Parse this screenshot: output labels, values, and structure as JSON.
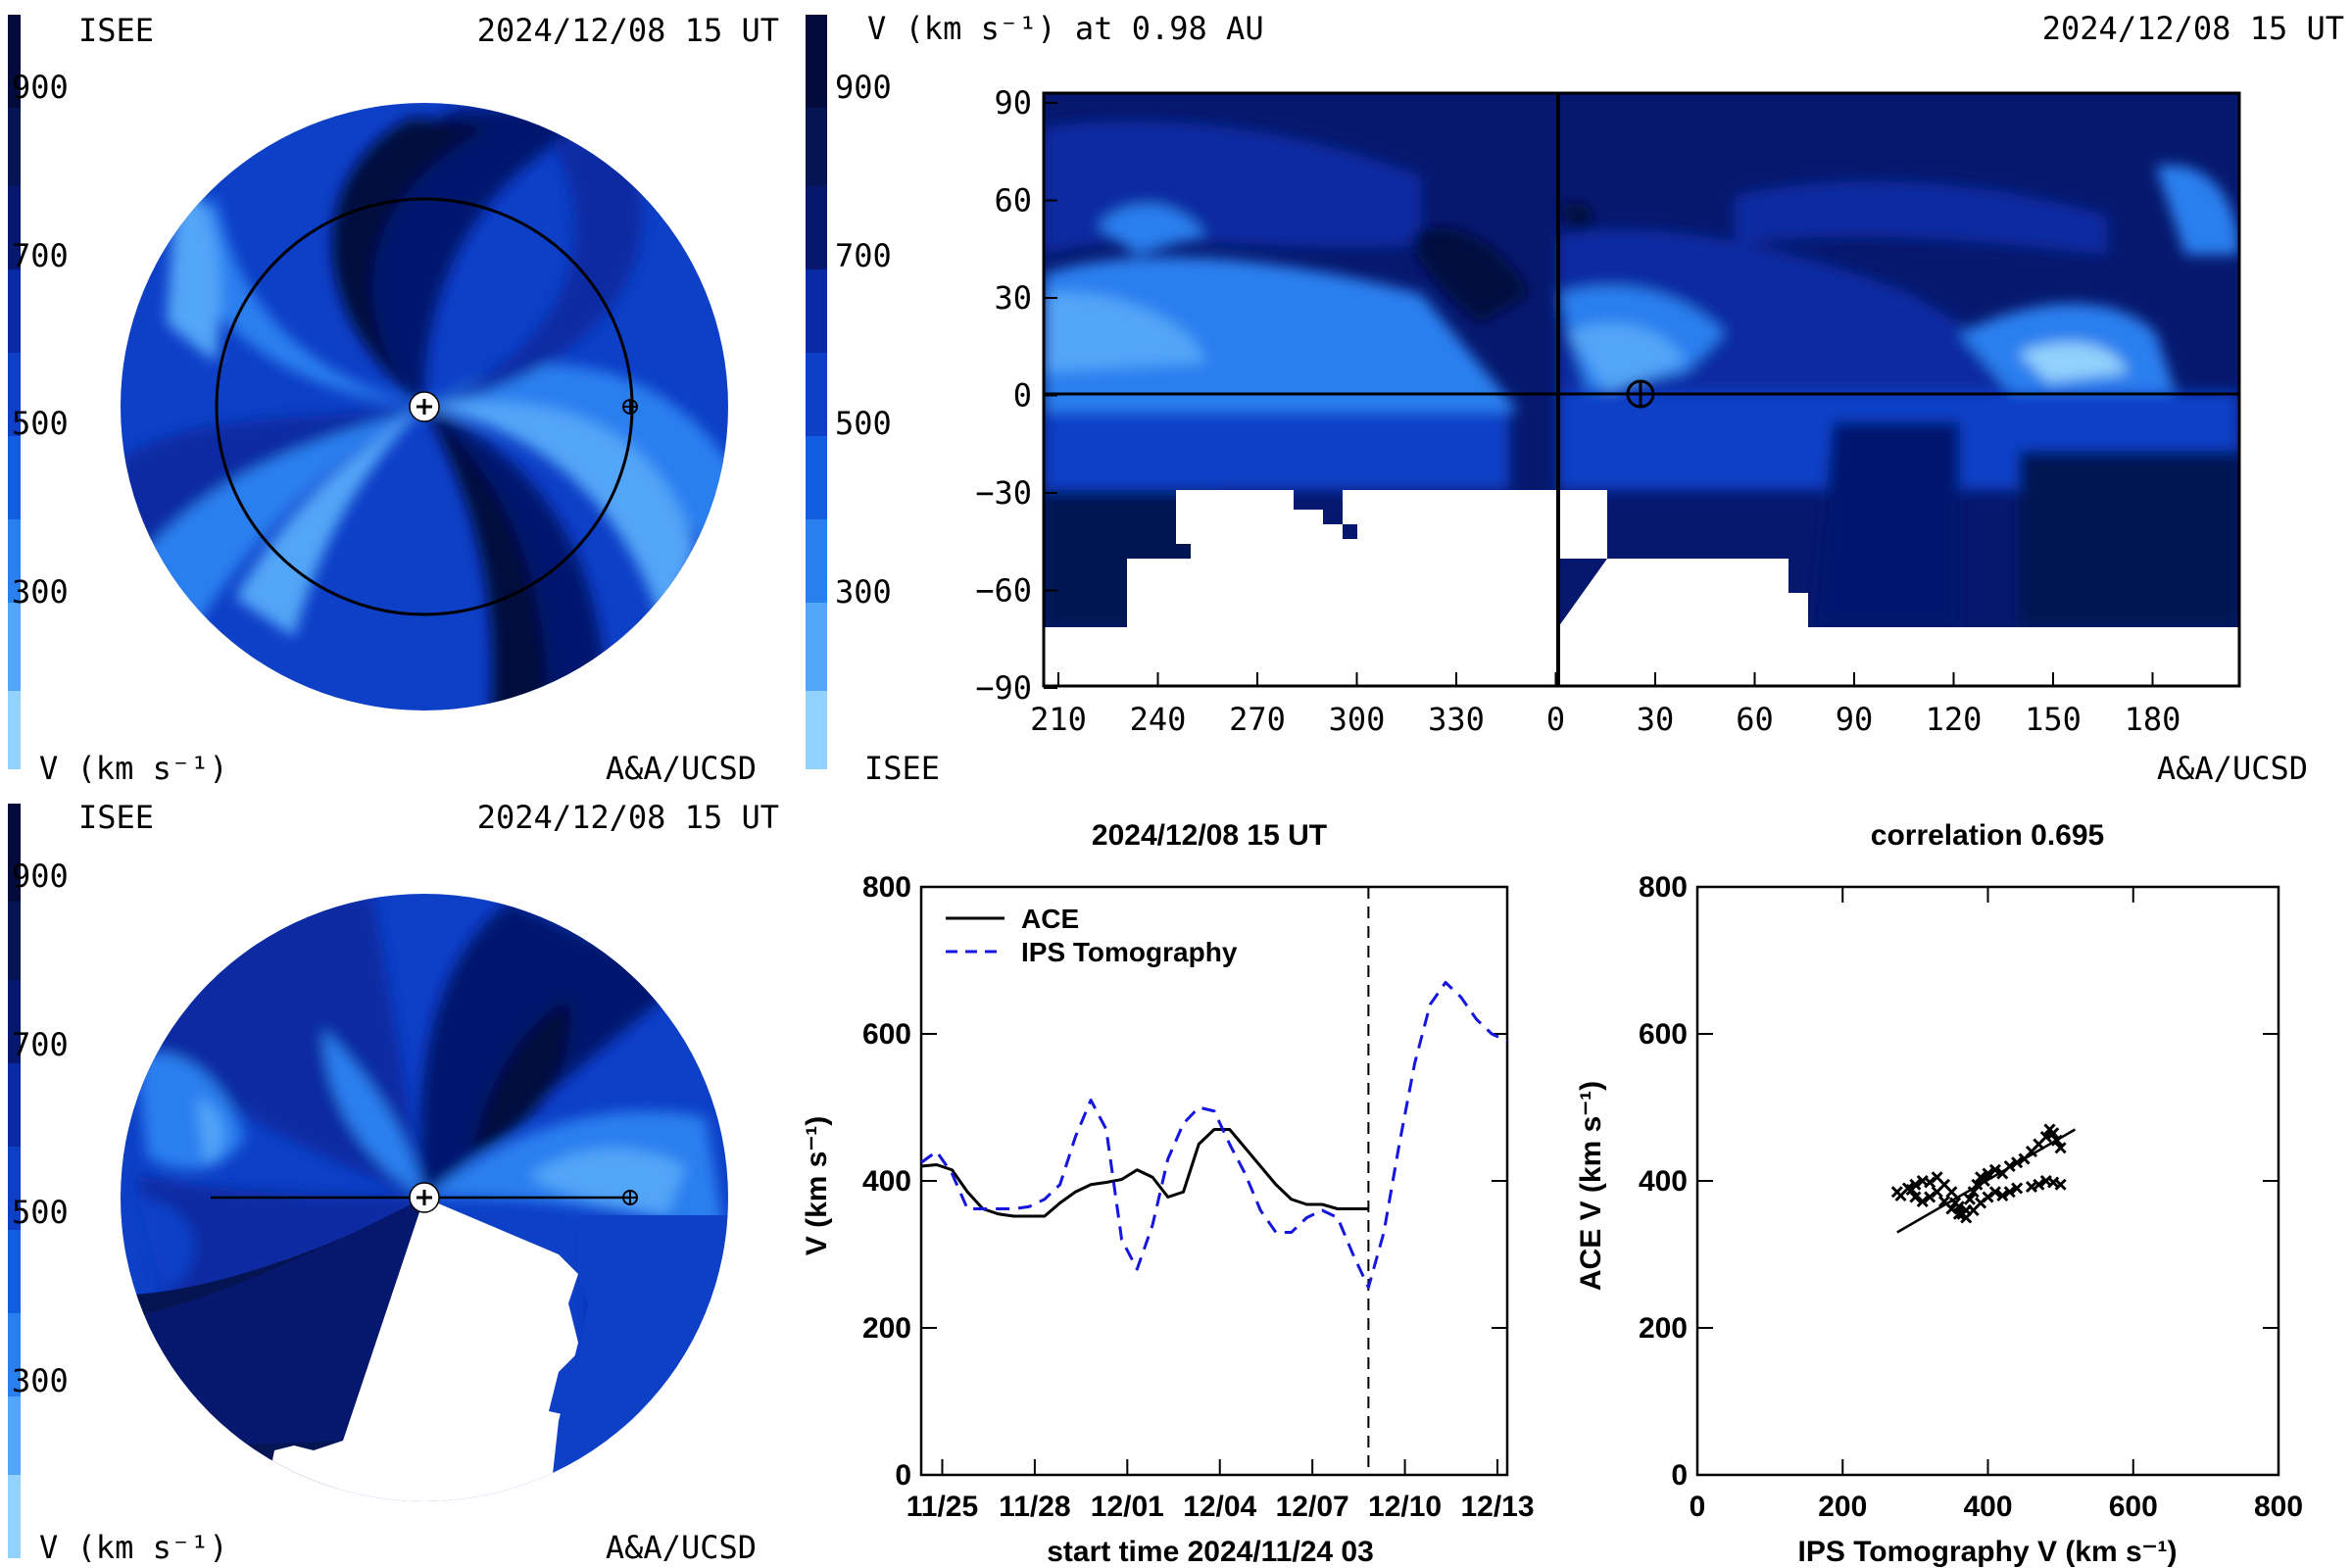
{
  "colorbar": {
    "ticks": [
      "900",
      "700",
      "500",
      "300"
    ],
    "colors": [
      "#030a3c",
      "#061668",
      "#0a2aa3",
      "#0d3fc7",
      "#125de0",
      "#2a7fef",
      "#52a5f8",
      "#93d2fc"
    ]
  },
  "panel_top_left": {
    "header_left": "ISEE",
    "header_right": "2024/12/08 15 UT",
    "footer_left": "V (km s⁻¹)",
    "footer_right": "A&A/UCSD"
  },
  "panel_top_right": {
    "header_left": "V (km s⁻¹) at 0.98 AU",
    "header_right": "2024/12/08 15 UT",
    "footer_left": "ISEE",
    "footer_right": "A&A/UCSD",
    "x_ticks": [
      "210",
      "240",
      "270",
      "300",
      "330",
      "0",
      "30",
      "60",
      "90",
      "120",
      "150",
      "180"
    ],
    "y_ticks": [
      "90",
      "60",
      "30",
      "0",
      "−30",
      "−60",
      "−90"
    ]
  },
  "panel_bottom_left": {
    "header_left": "ISEE",
    "header_right": "2024/12/08 15 UT",
    "footer_left": "V (km s⁻¹)",
    "footer_right": "A&A/UCSD"
  },
  "chart_data": [
    {
      "type": "line",
      "title": "2024/12/08 15 UT",
      "xlabel": "start time 2024/11/24 03",
      "ylabel": "V (km s⁻¹)",
      "x_tick_labels": [
        "11/25",
        "11/28",
        "12/01",
        "12/04",
        "12/07",
        "12/10",
        "12/13"
      ],
      "y_tick_labels": [
        "0",
        "200",
        "400",
        "600",
        "800"
      ],
      "ylim": [
        0,
        800
      ],
      "xlim_days": [
        0,
        19
      ],
      "vline_day": 14.5,
      "legend_position": "top-left",
      "series": [
        {
          "name": "ACE",
          "color": "#000000",
          "dash": "solid",
          "x": [
            0,
            0.5,
            1,
            1.5,
            2,
            2.5,
            3,
            3.5,
            4,
            4.5,
            5,
            5.5,
            6,
            6.5,
            7,
            7.5,
            8,
            8.5,
            9,
            9.5,
            10,
            10.5,
            11,
            11.5,
            12,
            12.5,
            13,
            13.5,
            14,
            14.5
          ],
          "y": [
            420,
            422,
            415,
            385,
            362,
            355,
            352,
            352,
            352,
            370,
            385,
            395,
            398,
            402,
            415,
            405,
            378,
            385,
            450,
            470,
            470,
            445,
            420,
            395,
            375,
            368,
            368,
            362,
            362,
            362
          ]
        },
        {
          "name": "IPS Tomography",
          "color": "#1515e0",
          "dash": "dashed",
          "x": [
            0,
            0.5,
            1,
            1.5,
            2,
            2.5,
            3,
            3.5,
            4,
            4.5,
            5,
            5.5,
            6,
            6.5,
            7,
            7.5,
            8,
            8.5,
            9,
            9.5,
            10,
            10.5,
            11,
            11.5,
            12,
            12.5,
            13,
            13.5,
            14,
            14.5,
            15,
            15.5,
            16,
            16.5,
            17,
            17.5,
            18,
            18.5,
            19
          ],
          "y": [
            425,
            440,
            410,
            362,
            362,
            362,
            362,
            365,
            375,
            395,
            460,
            510,
            470,
            320,
            280,
            340,
            430,
            478,
            500,
            495,
            450,
            410,
            360,
            330,
            330,
            350,
            360,
            350,
            300,
            255,
            330,
            450,
            560,
            640,
            670,
            650,
            620,
            600,
            590
          ]
        }
      ]
    },
    {
      "type": "scatter",
      "title": "correlation 0.695",
      "xlabel": "IPS Tomography V (km s⁻¹)",
      "ylabel": "ACE V (km s⁻¹)",
      "x_tick_labels": [
        "0",
        "200",
        "400",
        "600",
        "800"
      ],
      "y_tick_labels": [
        "0",
        "200",
        "400",
        "600",
        "800"
      ],
      "xlim": [
        0,
        800
      ],
      "ylim": [
        0,
        800
      ],
      "marker": "x",
      "fit_line": {
        "x": [
          275,
          520
        ],
        "y": [
          330,
          470
        ]
      },
      "points": [
        [
          275,
          385
        ],
        [
          280,
          380
        ],
        [
          290,
          390
        ],
        [
          300,
          395
        ],
        [
          310,
          400
        ],
        [
          320,
          398
        ],
        [
          330,
          405
        ],
        [
          340,
          395
        ],
        [
          350,
          385
        ],
        [
          355,
          370
        ],
        [
          360,
          365
        ],
        [
          365,
          355
        ],
        [
          370,
          360
        ],
        [
          375,
          375
        ],
        [
          380,
          385
        ],
        [
          385,
          395
        ],
        [
          390,
          405
        ],
        [
          395,
          400
        ],
        [
          400,
          410
        ],
        [
          410,
          415
        ],
        [
          420,
          410
        ],
        [
          430,
          420
        ],
        [
          440,
          425
        ],
        [
          450,
          430
        ],
        [
          460,
          440
        ],
        [
          470,
          450
        ],
        [
          480,
          460
        ],
        [
          485,
          470
        ],
        [
          490,
          465
        ],
        [
          495,
          455
        ],
        [
          500,
          445
        ],
        [
          500,
          395
        ],
        [
          490,
          398
        ],
        [
          480,
          400
        ],
        [
          470,
          395
        ],
        [
          460,
          392
        ],
        [
          440,
          390
        ],
        [
          430,
          385
        ],
        [
          420,
          380
        ],
        [
          410,
          385
        ],
        [
          400,
          378
        ],
        [
          390,
          370
        ],
        [
          380,
          360
        ],
        [
          370,
          350
        ],
        [
          360,
          355
        ],
        [
          350,
          362
        ],
        [
          340,
          372
        ],
        [
          330,
          385
        ],
        [
          320,
          378
        ],
        [
          310,
          372
        ],
        [
          300,
          378
        ],
        [
          295,
          388
        ]
      ]
    }
  ],
  "line_panel_legend": {
    "ace": "ACE",
    "ips": "IPS Tomography"
  }
}
